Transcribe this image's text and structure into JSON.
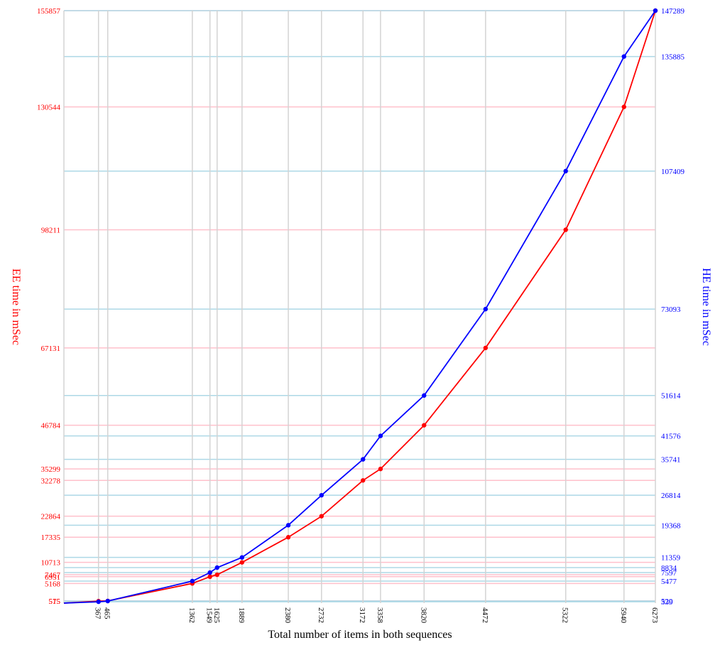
{
  "chart_data": {
    "type": "line",
    "xlabel": "Total number of items in both sequences",
    "y_left_label": "EE time in mSec",
    "y_right_label": "HE time in mSec",
    "xlim": [
      0,
      6273
    ],
    "y_left_lim": [
      0,
      155857
    ],
    "y_right_lim": [
      0,
      147289
    ],
    "grid": true,
    "x": [
      367,
      465,
      1362,
      1549,
      1625,
      1889,
      2380,
      2732,
      3172,
      3358,
      3820,
      4472,
      5322,
      5940,
      6273
    ],
    "x_tick_labels": [
      "367",
      "465",
      "1362",
      "1549",
      "1625",
      "1889",
      "2380",
      "2732",
      "3172",
      "3358",
      "3820",
      "4472",
      "5322",
      "5940",
      "6273"
    ],
    "series": [
      {
        "axis": "left",
        "color": "#ff0000",
        "values": [
          515,
          575,
          5168,
          6951,
          7467,
          10713,
          17335,
          22864,
          32278,
          35299,
          46784,
          67131,
          98211,
          130544,
          155857
        ]
      },
      {
        "axis": "right",
        "color": "#0000ff",
        "values": [
          339,
          520,
          5477,
          7597,
          8834,
          11359,
          19368,
          26814,
          35741,
          41576,
          51614,
          73093,
          107409,
          135885,
          147289
        ]
      }
    ],
    "y_left_ticks": [
      "515",
      "575",
      "5168",
      "6951",
      "7467",
      "10713",
      "17335",
      "22864",
      "32278",
      "35299",
      "46784",
      "67131",
      "98211",
      "130544",
      "155857"
    ],
    "y_right_ticks": [
      "339",
      "520",
      "5477",
      "7597",
      "8834",
      "11359",
      "19368",
      "26814",
      "35741",
      "41576",
      "51614",
      "73093",
      "107409",
      "135885",
      "147289"
    ],
    "colors": {
      "ee": "#ff0000",
      "he": "#0000ff",
      "ee_grid": "#ffc0cb",
      "he_grid": "#add8e6",
      "x_grid": "#d3d3d3"
    }
  }
}
